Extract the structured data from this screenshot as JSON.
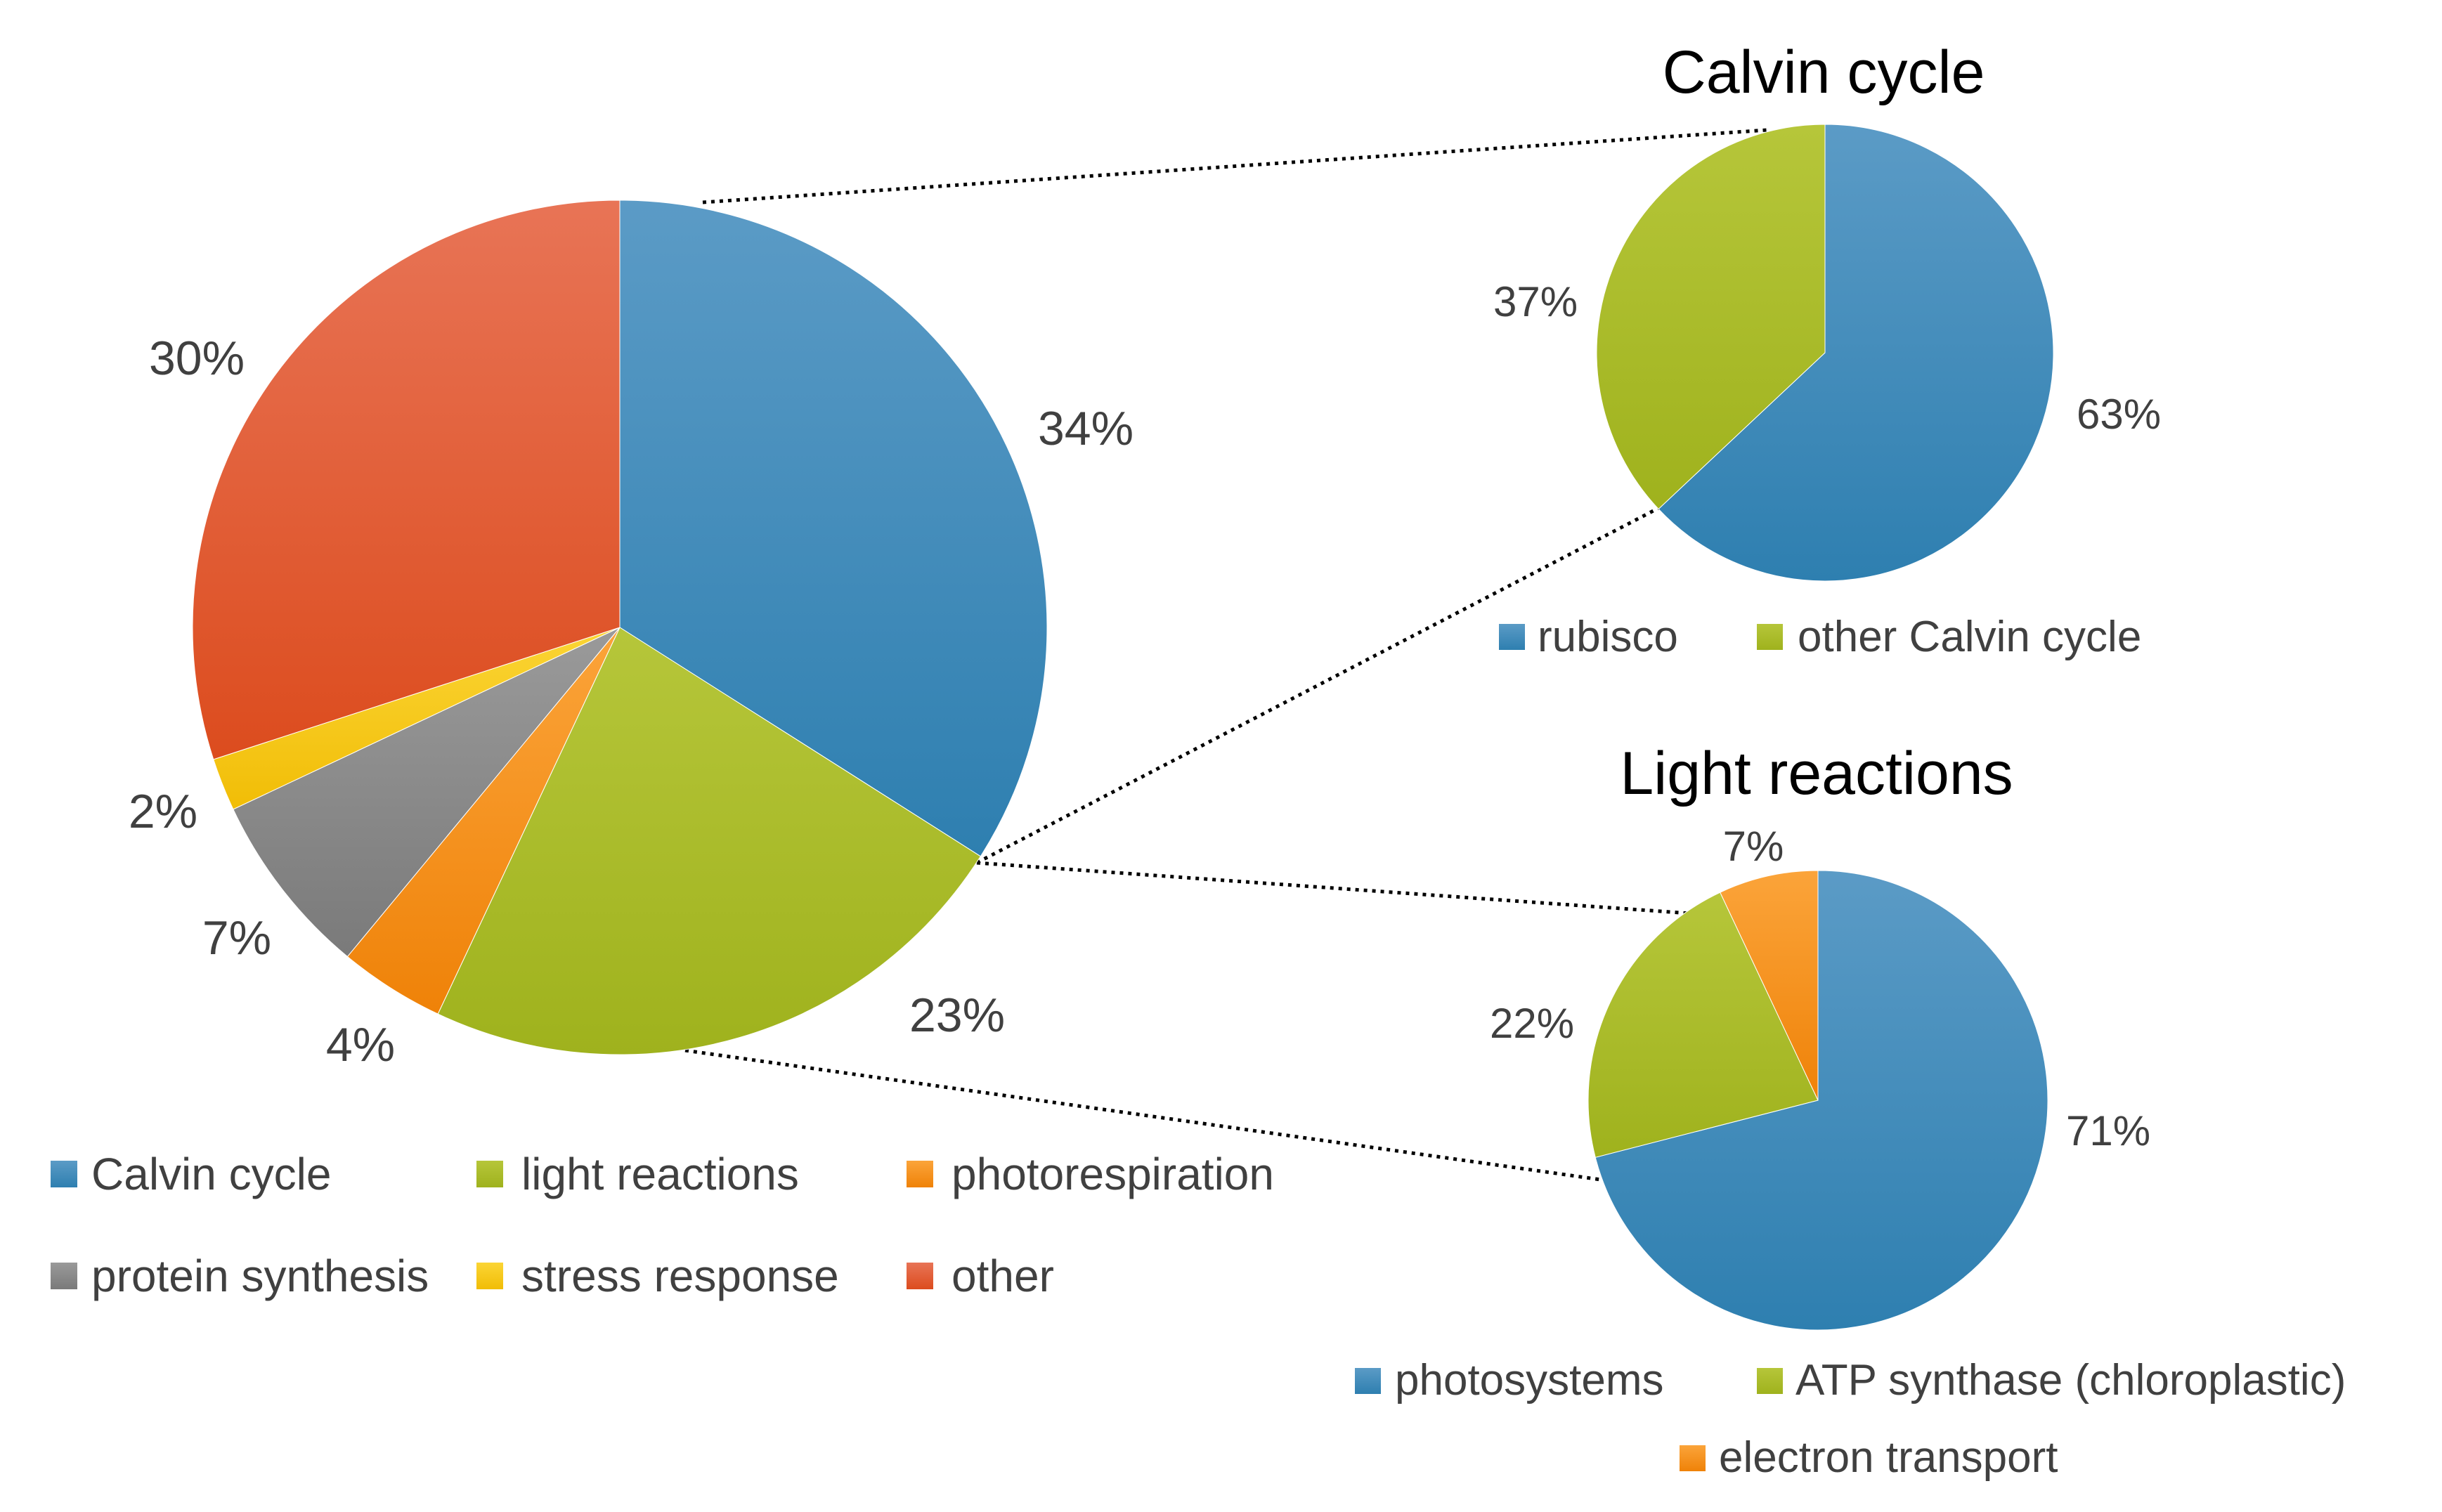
{
  "colors": {
    "blue": "#3a8bbd",
    "green": "#a9bd28",
    "orange": "#f68d12",
    "gray": "#8a8a8a",
    "yellow": "#f9c80e",
    "red": "#e05a32"
  },
  "chart_data": [
    {
      "id": "main",
      "type": "pie",
      "title": "",
      "categories": [
        "Calvin cycle",
        "light reactions",
        "photorespiration",
        "protein synthesis",
        "stress response",
        "other"
      ],
      "values": [
        34,
        23,
        4,
        7,
        2,
        30
      ],
      "labels": [
        "34%",
        "23%",
        "4%",
        "7%",
        "2%",
        "30%"
      ],
      "colors": [
        "#3a8bbd",
        "#a9bd28",
        "#f68d12",
        "#8a8a8a",
        "#f9c80e",
        "#e05a32"
      ],
      "legend": [
        "Calvin cycle",
        "light reactions",
        "photorespiration",
        "protein synthesis",
        "stress response",
        "other"
      ],
      "legend_position": "bottom"
    },
    {
      "id": "calvin",
      "type": "pie",
      "title": "Calvin cycle",
      "categories": [
        "rubisco",
        "other Calvin cycle"
      ],
      "values": [
        63,
        37
      ],
      "labels": [
        "63%",
        "37%"
      ],
      "colors": [
        "#3a8bbd",
        "#a9bd28"
      ],
      "legend": [
        "rubisco",
        "other Calvin cycle"
      ],
      "legend_position": "bottom"
    },
    {
      "id": "light",
      "type": "pie",
      "title": "Light reactions",
      "categories": [
        "photosystems",
        "ATP synthase (chloroplastic)",
        "electron transport"
      ],
      "values": [
        71,
        22,
        7
      ],
      "labels": [
        "71%",
        "22%",
        "7%"
      ],
      "colors": [
        "#3a8bbd",
        "#a9bd28",
        "#f68d12"
      ],
      "legend": [
        "photosystems",
        "ATP synthase (chloroplastic)",
        "electron transport"
      ],
      "legend_position": "bottom"
    }
  ]
}
